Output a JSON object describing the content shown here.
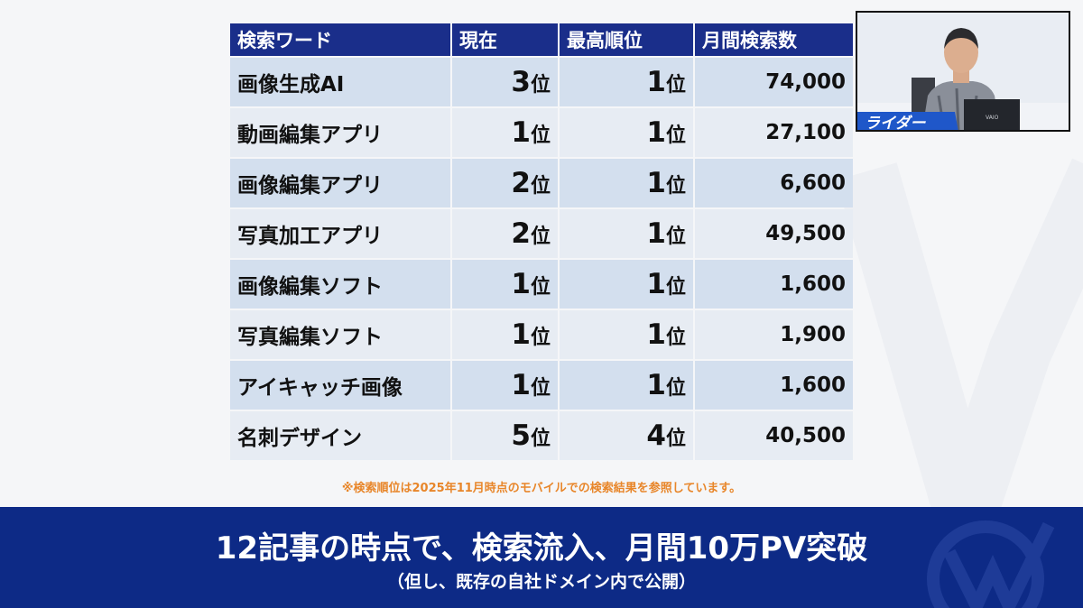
{
  "table": {
    "headers": [
      "検索ワード",
      "現在",
      "最高順位",
      "月間検索数"
    ],
    "rank_suffix": "位",
    "rows": [
      {
        "keyword": "画像生成AI",
        "current": "3",
        "best": "1",
        "volume": "74,000"
      },
      {
        "keyword": "動画編集アプリ",
        "current": "1",
        "best": "1",
        "volume": "27,100"
      },
      {
        "keyword": "画像編集アプリ",
        "current": "2",
        "best": "1",
        "volume": "6,600"
      },
      {
        "keyword": "写真加工アプリ",
        "current": "2",
        "best": "1",
        "volume": "49,500"
      },
      {
        "keyword": "画像編集ソフト",
        "current": "1",
        "best": "1",
        "volume": "1,600"
      },
      {
        "keyword": "写真編集ソフト",
        "current": "1",
        "best": "1",
        "volume": "1,900"
      },
      {
        "keyword": "アイキャッチ画像",
        "current": "1",
        "best": "1",
        "volume": "1,600"
      },
      {
        "keyword": "名刺デザイン",
        "current": "5",
        "best": "4",
        "volume": "40,500"
      }
    ]
  },
  "note": "※検索順位は2025年11月時点のモバイルでの検索結果を参照しています。",
  "webcam": {
    "banner": "ライダー",
    "laptop_brand": "VAIO"
  },
  "footer": {
    "headline": "12記事の時点で、検索流入、月間10万PV突破",
    "subline": "（但し、既存の自社ドメイン内で公開）"
  },
  "colors": {
    "header_bg": "#1a2e8a",
    "row_dark": "#d3dfee",
    "row_light": "#e7ecf3",
    "footer_bg": "#0d2a86",
    "note_text": "#e8862a"
  }
}
